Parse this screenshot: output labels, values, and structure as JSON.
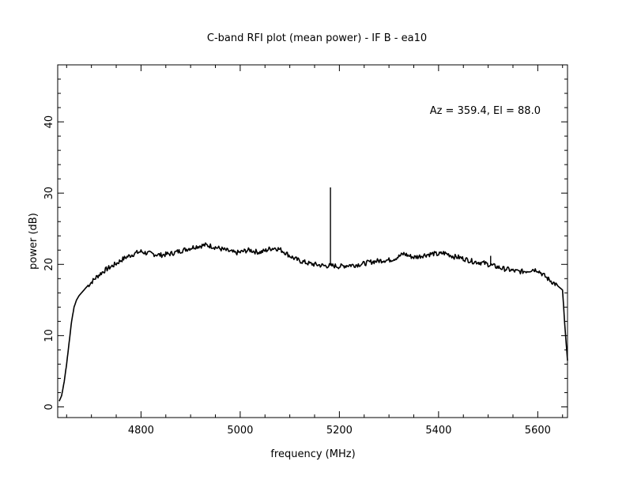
{
  "chart_data": {
    "type": "line",
    "title": "C-band RFI plot (mean power) - IF B - ea10",
    "xlabel": "frequency (MHz)",
    "ylabel": "power (dB)",
    "annotation": "Az = 359.4, El = 88.0",
    "xlim": [
      4632,
      5660
    ],
    "ylim": [
      -1.5,
      48
    ],
    "xticks": [
      4800,
      5000,
      5200,
      5400,
      5600
    ],
    "yticks": [
      0,
      10,
      20,
      30,
      40
    ],
    "grid": false,
    "line_color": "#000000",
    "series": [
      {
        "x": [
          4635,
          4640,
          4645,
          4650,
          4655,
          4660,
          4665,
          4670,
          4675,
          4680,
          4690,
          4700,
          4710,
          4720,
          4730,
          4740,
          4750,
          4760,
          4770,
          4780,
          4790,
          4800,
          4810,
          4820,
          4830,
          4840,
          4850,
          4860,
          4870,
          4880,
          4890,
          4900,
          4910,
          4920,
          4930,
          4940,
          4950,
          4960,
          4970,
          4980,
          4990,
          5000,
          5010,
          5020,
          5030,
          5040,
          5050,
          5060,
          5070,
          5080,
          5090,
          5100,
          5110,
          5120,
          5130,
          5140,
          5150,
          5160,
          5170,
          5180,
          5190,
          5200,
          5210,
          5220,
          5230,
          5240,
          5250,
          5260,
          5270,
          5280,
          5290,
          5300,
          5310,
          5320,
          5330,
          5340,
          5350,
          5360,
          5370,
          5380,
          5390,
          5400,
          5410,
          5420,
          5430,
          5440,
          5450,
          5460,
          5470,
          5480,
          5490,
          5500,
          5510,
          5520,
          5530,
          5540,
          5550,
          5560,
          5570,
          5580,
          5590,
          5600,
          5610,
          5620,
          5630,
          5640,
          5645,
          5650,
          5655,
          5660
        ],
        "y": [
          0.8,
          1.6,
          3.5,
          6.0,
          9.0,
          12.0,
          14.0,
          15.0,
          15.6,
          16.0,
          16.8,
          17.5,
          18.2,
          18.8,
          19.3,
          19.7,
          20.1,
          20.6,
          21.0,
          21.3,
          21.6,
          21.8,
          21.6,
          21.5,
          21.4,
          21.3,
          21.4,
          21.5,
          21.7,
          21.9,
          22.1,
          22.3,
          22.5,
          22.6,
          22.7,
          22.6,
          22.4,
          22.2,
          22.0,
          21.8,
          21.6,
          21.7,
          21.9,
          22.0,
          21.8,
          21.7,
          21.9,
          22.2,
          22.3,
          22.1,
          21.7,
          21.2,
          20.8,
          20.5,
          20.3,
          20.1,
          20.0,
          19.9,
          19.8,
          19.8,
          19.8,
          19.7,
          19.8,
          19.9,
          19.9,
          20.0,
          20.1,
          20.3,
          20.4,
          20.5,
          20.6,
          20.6,
          20.8,
          21.1,
          21.5,
          21.2,
          21.0,
          21.1,
          21.3,
          21.4,
          21.5,
          21.4,
          21.6,
          21.4,
          21.1,
          21.0,
          20.8,
          20.6,
          20.4,
          20.3,
          20.2,
          20.0,
          19.8,
          19.6,
          19.4,
          19.3,
          19.1,
          19.0,
          19.0,
          19.1,
          19.3,
          19.2,
          18.6,
          18.0,
          17.5,
          17.0,
          16.7,
          16.4,
          11.0,
          6.5
        ]
      }
    ],
    "spikes": [
      {
        "x": 5182,
        "y_base": 19.8,
        "y_peak": 30.8
      },
      {
        "x": 5505,
        "y_base": 19.9,
        "y_peak": 21.2
      }
    ]
  }
}
